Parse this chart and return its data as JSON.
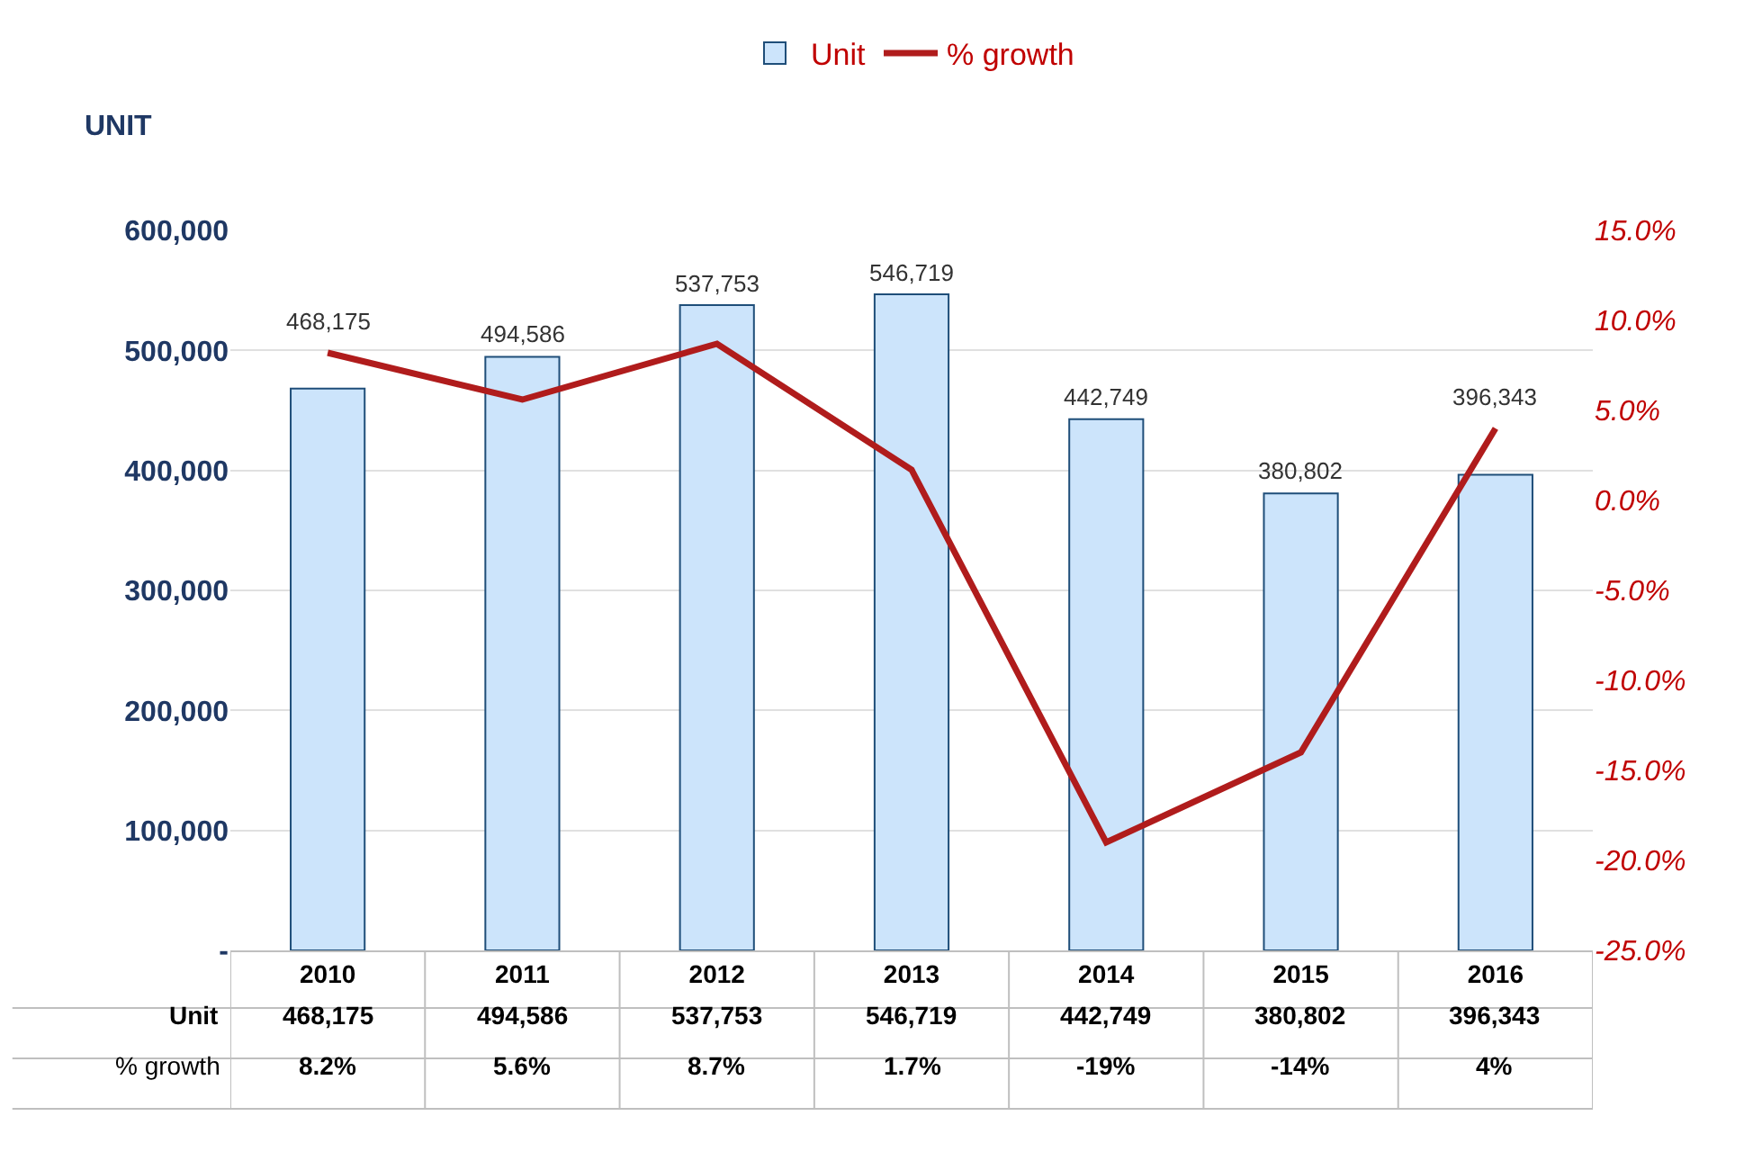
{
  "chart_data": {
    "type": "bar",
    "ylabel": "UNIT",
    "categories": [
      "2010",
      "2011",
      "2012",
      "2013",
      "2014",
      "2015",
      "2016"
    ],
    "series": [
      {
        "name": "Unit",
        "color": "#cce4fb",
        "values": [
          468175,
          494586,
          537753,
          546719,
          442749,
          380802,
          396343
        ],
        "value_labels": [
          "468,175",
          "494,586",
          "537,753",
          "546,719",
          "442,749",
          "380,802",
          "396,343"
        ]
      },
      {
        "name": "% growth",
        "type": "line",
        "axis": "y2",
        "color": "#b01c1c",
        "values": [
          8.2,
          5.6,
          8.7,
          1.7,
          -19,
          -14,
          4
        ],
        "value_labels": [
          "8.2%",
          "5.6%",
          "8.7%",
          "1.7%",
          "-19%",
          "-14%",
          "4%"
        ]
      }
    ],
    "ylim": [
      0,
      600000
    ],
    "yticks": [
      {
        "value": 0,
        "label": "-"
      },
      {
        "value": 100000,
        "label": "100,000"
      },
      {
        "value": 200000,
        "label": "200,000"
      },
      {
        "value": 300000,
        "label": "300,000"
      },
      {
        "value": 400000,
        "label": "400,000"
      },
      {
        "value": 500000,
        "label": "500,000"
      },
      {
        "value": 600000,
        "label": "600,000"
      }
    ],
    "y2lim": [
      -25,
      15
    ],
    "y2ticks": [
      {
        "value": -25,
        "label": "-25.0%"
      },
      {
        "value": -20,
        "label": "-20.0%"
      },
      {
        "value": -15,
        "label": "-15.0%"
      },
      {
        "value": -10,
        "label": "-10.0%"
      },
      {
        "value": -5,
        "label": "-5.0%"
      },
      {
        "value": 0,
        "label": "0.0%"
      },
      {
        "value": 5,
        "label": "5.0%"
      },
      {
        "value": 10,
        "label": "10.0%"
      },
      {
        "value": 15,
        "label": "15.0%"
      }
    ],
    "grid": "y",
    "legend": "top",
    "marker": "none",
    "line_style": "solid"
  }
}
